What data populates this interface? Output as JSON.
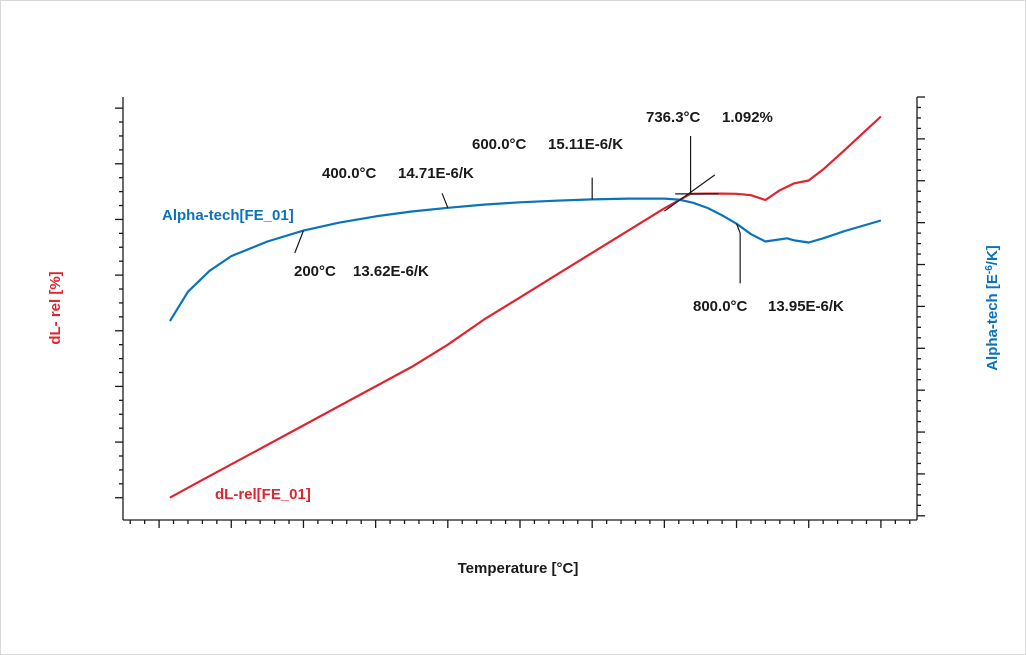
{
  "chart_data": {
    "type": "line",
    "x_axis": {
      "label": "Temperature [°C]",
      "range": [
        -50,
        1050
      ],
      "ticks": [
        "0",
        "100",
        "200",
        "300",
        "400",
        "500",
        "600",
        "700",
        "800",
        "900",
        "1000"
      ],
      "tick_values": [
        0,
        100,
        200,
        300,
        400,
        500,
        600,
        700,
        800,
        900,
        1000
      ]
    },
    "y_left": {
      "label": "dL- rel [%]",
      "color": "#e0242f",
      "range": [
        -0.08,
        1.44
      ],
      "ticks": [
        "0.00",
        "0.20",
        "0.40",
        "0.60",
        "0.80",
        "1.00",
        "1.20",
        "1.40"
      ],
      "tick_values": [
        0,
        0.2,
        0.4,
        0.6,
        0.8,
        1.0,
        1.2,
        1.4
      ]
    },
    "y_right": {
      "label_main": "Alpha-tech [E",
      "label_sup": "-6",
      "label_tail": "/K]",
      "color": "#0a73b9",
      "range": [
        -0.2,
        20.0
      ],
      "ticks": [
        "0.0",
        "2.0",
        "4.0",
        "6.0",
        "8.0",
        "10.0",
        "12.0",
        "14.0",
        "16.0",
        "18.0",
        "20.0"
      ],
      "tick_values": [
        0,
        2,
        4,
        6,
        8,
        10,
        12,
        14,
        16,
        18,
        20
      ]
    },
    "series": [
      {
        "name": "dL-rel[FE_01]",
        "axis": "left",
        "color": "#e0242f",
        "x": [
          15,
          50,
          100,
          150,
          200,
          250,
          300,
          350,
          400,
          450,
          500,
          550,
          600,
          650,
          700,
          736.3,
          760,
          780,
          800,
          820,
          840,
          860,
          880,
          900,
          920,
          950,
          1000
        ],
        "y": [
          0.0,
          0.05,
          0.12,
          0.19,
          0.26,
          0.33,
          0.4,
          0.47,
          0.55,
          0.64,
          0.72,
          0.8,
          0.88,
          0.96,
          1.04,
          1.092,
          1.093,
          1.093,
          1.092,
          1.087,
          1.07,
          1.105,
          1.13,
          1.14,
          1.18,
          1.25,
          1.37
        ]
      },
      {
        "name": "Alpha-tech[FE_01]",
        "axis": "right",
        "color": "#0a73b9",
        "x": [
          15,
          40,
          70,
          100,
          150,
          200,
          250,
          300,
          350,
          400,
          450,
          500,
          550,
          600,
          650,
          700,
          720,
          740,
          760,
          780,
          800,
          820,
          840,
          860,
          870,
          880,
          900,
          920,
          950,
          1000
        ],
        "y": [
          9.3,
          10.7,
          11.7,
          12.4,
          13.1,
          13.62,
          14.0,
          14.3,
          14.53,
          14.71,
          14.86,
          14.97,
          15.05,
          15.11,
          15.15,
          15.15,
          15.1,
          14.95,
          14.7,
          14.35,
          13.95,
          13.45,
          13.1,
          13.2,
          13.25,
          13.15,
          13.05,
          13.25,
          13.6,
          14.1
        ]
      }
    ],
    "series_labels": [
      "Alpha-tech[FE_01]",
      "dL-rel[FE_01]"
    ],
    "annotations": [
      {
        "temp": "200°C",
        "value": "13.62E-6/K"
      },
      {
        "temp": "400.0°C",
        "value": "14.71E-6/K"
      },
      {
        "temp": "600.0°C",
        "value": "15.11E-6/K"
      },
      {
        "temp": "736.3°C",
        "value": "1.092%"
      },
      {
        "temp": "800.0°C",
        "value": "13.95E-6/K"
      }
    ]
  }
}
